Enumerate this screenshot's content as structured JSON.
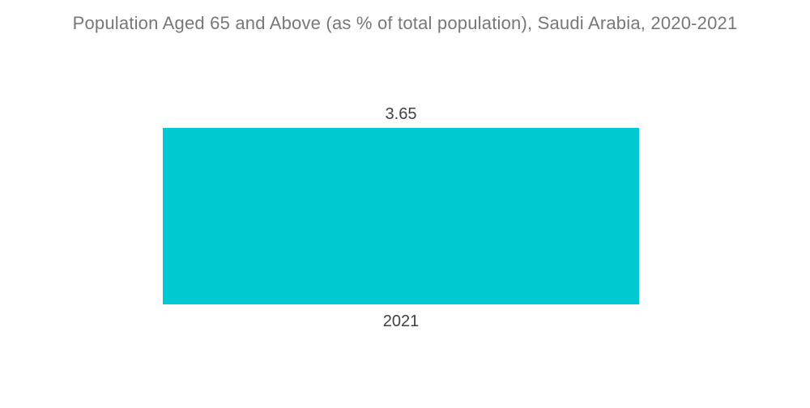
{
  "title": "Population Aged 65 and Above (as % of total population), Saudi Arabia, 2020-2021",
  "chart_data": {
    "type": "bar",
    "title": "Population Aged 65 and Above (as % of total population), Saudi Arabia, 2020-2021",
    "categories": [
      "2021"
    ],
    "values": [
      3.65
    ],
    "series": [
      {
        "name": "Population Aged 65 and Above (% of total population)",
        "values": [
          3.65
        ]
      }
    ],
    "value_labels": [
      "3.65"
    ],
    "xlabel": "",
    "ylabel": "",
    "ylim": [
      0,
      3.65
    ],
    "grid": false,
    "legend_position": "none",
    "orientation": "vertical",
    "bar_color": "#00c9d2"
  },
  "labels": {
    "bar_value": "3.65",
    "bar_category": "2021"
  },
  "colors": {
    "background": "#ffffff",
    "bar": "#00c9d2",
    "title_text": "#77787b",
    "label_text": "#414042"
  }
}
